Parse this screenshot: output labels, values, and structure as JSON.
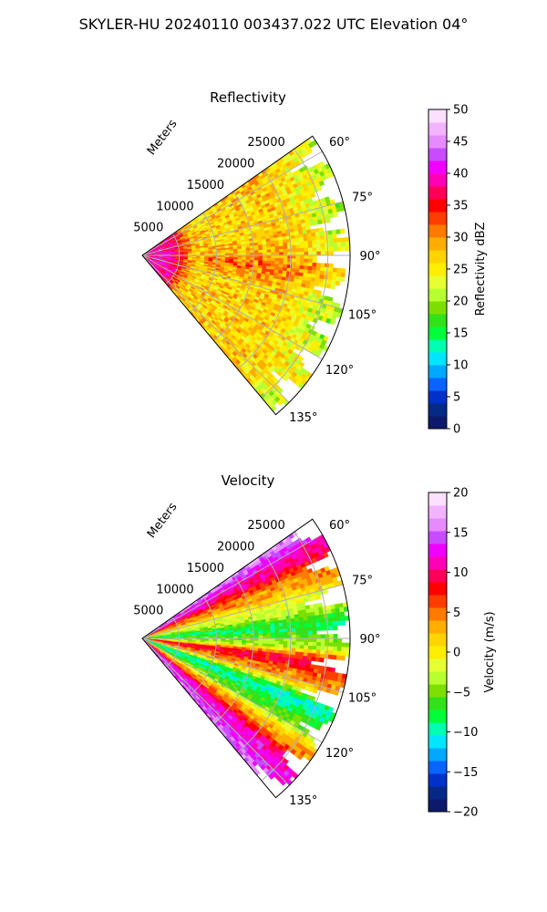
{
  "figure": {
    "suptitle": "SKYLER-HU  20240110  003437.022 UTC Elevation 04°"
  },
  "chart_data": [
    {
      "type": "heatmap",
      "title": "Reflectivity",
      "projection": "polar-sector",
      "range_label": "Meters",
      "range_ticks": [
        "5000",
        "10000",
        "15000",
        "20000",
        "25000"
      ],
      "range_values": [
        5000,
        10000,
        15000,
        20000,
        25000
      ],
      "azimuth_ticks": [
        "60°",
        "75°",
        "90°",
        "105°",
        "120°",
        "135°"
      ],
      "azimuth_values": [
        60,
        75,
        90,
        105,
        120,
        135
      ],
      "azimuth_range": [
        55,
        140
      ],
      "range_limit": 28000,
      "grid": true,
      "colorbar": {
        "label": "Reflectivity dBZ",
        "ticks": [
          "0",
          "5",
          "10",
          "15",
          "20",
          "25",
          "30",
          "35",
          "40",
          "45",
          "50"
        ],
        "range": [
          0,
          50
        ]
      },
      "field_pattern": "high values (~35-40 dBZ) near origin within ~5000 m, broad field 25-30 dBZ elsewhere, sparse greens (~20 dBZ) at outer edges"
    },
    {
      "type": "heatmap",
      "title": "Velocity",
      "projection": "polar-sector",
      "range_label": "Meters",
      "range_ticks": [
        "5000",
        "10000",
        "15000",
        "20000",
        "25000"
      ],
      "range_values": [
        5000,
        10000,
        15000,
        20000,
        25000
      ],
      "azimuth_ticks": [
        "60°",
        "75°",
        "90°",
        "105°",
        "120°",
        "135°"
      ],
      "azimuth_values": [
        60,
        75,
        90,
        105,
        120,
        135
      ],
      "azimuth_range": [
        55,
        140
      ],
      "range_limit": 28000,
      "grid": true,
      "colorbar": {
        "label": "Velocity (m/s)",
        "ticks": [
          "-20",
          "-15",
          "-10",
          "-5",
          "0",
          "5",
          "10",
          "15",
          "20"
        ],
        "range": [
          -20,
          20
        ]
      },
      "field_pattern": "banded by azimuth: ~+15 at 60°, +10 near 65°, 0 near 75°, -5 to -10 near 90°, +10 near 100°, -10 near 115°, +10 to +15 near 132°"
    }
  ],
  "colors": {
    "grid": "#b0b0b0",
    "cmap": [
      "#0d1a6b",
      "#052a86",
      "#0031c9",
      "#0a63ff",
      "#00a8ff",
      "#00e6ff",
      "#00ffb0",
      "#00ff3a",
      "#33e11a",
      "#7be000",
      "#b8ff2f",
      "#e6ff33",
      "#ffee00",
      "#ffd400",
      "#ffae00",
      "#ff7b00",
      "#ff3d00",
      "#ff0000",
      "#ff0058",
      "#ff00b4",
      "#f000ff",
      "#c74cff",
      "#e68bff",
      "#f3b4ff",
      "#fde0ff"
    ]
  }
}
